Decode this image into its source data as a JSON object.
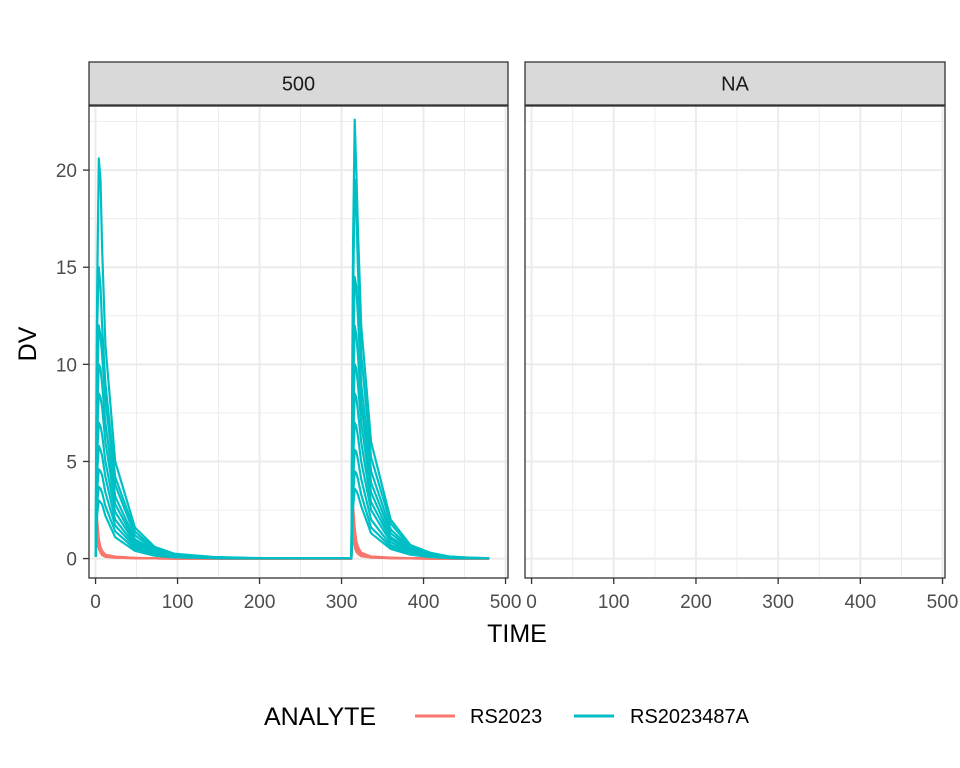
{
  "chart_data": {
    "type": "line",
    "xlabel": "TIME",
    "ylabel": "DV",
    "facets": [
      "500",
      "NA"
    ],
    "xlim": [
      -8,
      503
    ],
    "ylim": [
      -1,
      23.3
    ],
    "x_ticks": [
      0,
      100,
      200,
      300,
      400,
      500
    ],
    "y_ticks": [
      0,
      5,
      10,
      15,
      20
    ],
    "grid": true,
    "legend": {
      "title": "ANALYTE",
      "position": "bottom",
      "entries": [
        "RS2023",
        "RS2023487A"
      ]
    },
    "colors": {
      "RS2023": "#F8766D",
      "RS2023487A": "#00BFC4"
    },
    "sampling_times": [
      0,
      1,
      2,
      4,
      6,
      8,
      12,
      24,
      48,
      72,
      96,
      144,
      192,
      240,
      288,
      312,
      313,
      314,
      316,
      318,
      320,
      324,
      336,
      360,
      384,
      408,
      432,
      456,
      480
    ],
    "series": [
      {
        "analyte": "RS2023",
        "facet": "500",
        "values": [
          0.1,
          2.6,
          2.0,
          1.0,
          0.6,
          0.4,
          0.2,
          0.1,
          0.04,
          0.02,
          0.01,
          0.01,
          0,
          0,
          0,
          0,
          3.6,
          2.8,
          1.6,
          0.9,
          0.6,
          0.3,
          0.1,
          0.05,
          0.02,
          0.01,
          0.01,
          0,
          0
        ]
      },
      {
        "analyte": "RS2023",
        "facet": "500",
        "values": [
          0.1,
          2.2,
          1.7,
          0.9,
          0.5,
          0.35,
          0.18,
          0.08,
          0.03,
          0.02,
          0.01,
          0,
          0,
          0,
          0,
          0,
          3.0,
          2.3,
          1.3,
          0.7,
          0.45,
          0.25,
          0.1,
          0.04,
          0.02,
          0.01,
          0,
          0,
          0
        ]
      },
      {
        "analyte": "RS2023",
        "facet": "500",
        "values": [
          0.1,
          1.9,
          1.5,
          0.8,
          0.45,
          0.3,
          0.15,
          0.07,
          0.03,
          0.01,
          0.01,
          0,
          0,
          0,
          0,
          0,
          2.5,
          1.9,
          1.1,
          0.6,
          0.4,
          0.2,
          0.08,
          0.03,
          0.01,
          0.01,
          0,
          0,
          0
        ]
      },
      {
        "analyte": "RS2023",
        "facet": "500",
        "values": [
          0.1,
          1.6,
          1.2,
          0.7,
          0.4,
          0.25,
          0.12,
          0.06,
          0.02,
          0.01,
          0,
          0,
          0,
          0,
          0,
          0,
          2.1,
          1.6,
          0.9,
          0.5,
          0.35,
          0.18,
          0.07,
          0.03,
          0.01,
          0,
          0,
          0,
          0
        ]
      },
      {
        "analyte": "RS2023",
        "facet": "500",
        "values": [
          0.1,
          1.3,
          1.0,
          0.6,
          0.35,
          0.2,
          0.1,
          0.05,
          0.02,
          0.01,
          0,
          0,
          0,
          0,
          0,
          0,
          1.7,
          1.3,
          0.8,
          0.45,
          0.3,
          0.15,
          0.06,
          0.02,
          0.01,
          0,
          0,
          0,
          0
        ]
      },
      {
        "analyte": "RS2023",
        "facet": "500",
        "values": [
          0.1,
          1.0,
          0.8,
          0.5,
          0.3,
          0.18,
          0.09,
          0.04,
          0.02,
          0.01,
          0,
          0,
          0,
          0,
          0,
          0,
          1.3,
          1.0,
          0.6,
          0.35,
          0.25,
          0.12,
          0.05,
          0.02,
          0.01,
          0,
          0,
          0,
          0
        ]
      },
      {
        "analyte": "RS2023487A",
        "facet": "500",
        "values": [
          0.1,
          8.0,
          14.0,
          20.6,
          19.5,
          16.0,
          11.0,
          5.0,
          1.6,
          0.6,
          0.25,
          0.08,
          0.03,
          0.01,
          0.01,
          0.01,
          9.0,
          16.0,
          22.6,
          20.0,
          17.0,
          12.0,
          6.0,
          2.0,
          0.7,
          0.3,
          0.1,
          0.05,
          0.02
        ]
      },
      {
        "analyte": "RS2023487A",
        "facet": "500",
        "values": [
          0.1,
          6.0,
          12.0,
          15.0,
          14.0,
          12.0,
          9.0,
          4.2,
          1.4,
          0.5,
          0.2,
          0.07,
          0.02,
          0.01,
          0.01,
          0.01,
          7.0,
          13.0,
          19.5,
          18.0,
          15.0,
          10.5,
          5.2,
          1.8,
          0.6,
          0.25,
          0.1,
          0.04,
          0.02
        ]
      },
      {
        "analyte": "RS2023487A",
        "facet": "500",
        "values": [
          0.1,
          5.0,
          9.0,
          12.0,
          11.5,
          10.5,
          8.2,
          3.8,
          1.2,
          0.45,
          0.18,
          0.06,
          0.02,
          0.01,
          0.01,
          0.01,
          6.0,
          10.0,
          14.5,
          14.0,
          12.5,
          9.0,
          4.5,
          1.5,
          0.55,
          0.22,
          0.08,
          0.03,
          0.01
        ]
      },
      {
        "analyte": "RS2023487A",
        "facet": "500",
        "values": [
          0.1,
          4.2,
          7.5,
          10.0,
          9.8,
          9.0,
          7.0,
          3.2,
          1.0,
          0.4,
          0.15,
          0.05,
          0.02,
          0.01,
          0.01,
          0.01,
          5.0,
          8.5,
          12.0,
          11.5,
          10.5,
          8.0,
          3.9,
          1.3,
          0.5,
          0.2,
          0.07,
          0.03,
          0.01
        ]
      },
      {
        "analyte": "RS2023487A",
        "facet": "500",
        "values": [
          0.1,
          3.5,
          6.5,
          8.5,
          8.3,
          7.8,
          6.0,
          2.8,
          0.9,
          0.35,
          0.13,
          0.05,
          0.02,
          0.01,
          0.01,
          0.01,
          4.2,
          7.0,
          10.0,
          9.8,
          9.0,
          7.0,
          3.4,
          1.1,
          0.45,
          0.18,
          0.06,
          0.02,
          0.01
        ]
      },
      {
        "analyte": "RS2023487A",
        "facet": "500",
        "values": [
          0.1,
          3.0,
          5.5,
          7.0,
          6.8,
          6.4,
          5.0,
          2.4,
          0.8,
          0.3,
          0.12,
          0.04,
          0.01,
          0.01,
          0.01,
          0.01,
          3.6,
          6.0,
          8.5,
          8.3,
          7.6,
          6.0,
          2.9,
          1.0,
          0.4,
          0.15,
          0.05,
          0.02,
          0.01
        ]
      },
      {
        "analyte": "RS2023487A",
        "facet": "500",
        "values": [
          0.1,
          2.5,
          4.5,
          5.8,
          5.6,
          5.3,
          4.2,
          2.0,
          0.7,
          0.25,
          0.1,
          0.04,
          0.01,
          0.01,
          0.01,
          0.01,
          3.0,
          5.0,
          7.0,
          6.8,
          6.3,
          5.0,
          2.5,
          0.85,
          0.35,
          0.13,
          0.05,
          0.02,
          0.01
        ]
      },
      {
        "analyte": "RS2023487A",
        "facet": "500",
        "values": [
          0.1,
          2.0,
          3.6,
          4.6,
          4.5,
          4.3,
          3.4,
          1.7,
          0.6,
          0.22,
          0.09,
          0.03,
          0.01,
          0.01,
          0.01,
          0.01,
          2.4,
          4.0,
          5.6,
          5.5,
          5.1,
          4.1,
          2.0,
          0.7,
          0.3,
          0.11,
          0.04,
          0.01,
          0.01
        ]
      },
      {
        "analyte": "RS2023487A",
        "facet": "500",
        "values": [
          0.1,
          1.6,
          2.9,
          3.7,
          3.6,
          3.4,
          2.7,
          1.4,
          0.5,
          0.18,
          0.07,
          0.03,
          0.01,
          0.01,
          0.01,
          0.01,
          2.0,
          3.2,
          4.5,
          4.4,
          4.1,
          3.3,
          1.6,
          0.6,
          0.25,
          0.09,
          0.03,
          0.01,
          0.01
        ]
      },
      {
        "analyte": "RS2023487A",
        "facet": "500",
        "values": [
          0.1,
          1.3,
          2.3,
          3.0,
          2.9,
          2.8,
          2.2,
          1.1,
          0.4,
          0.15,
          0.06,
          0.02,
          0.01,
          0.01,
          0.01,
          0.01,
          1.6,
          2.6,
          3.6,
          3.5,
          3.3,
          2.7,
          1.3,
          0.5,
          0.2,
          0.08,
          0.03,
          0.01,
          0.01
        ]
      }
    ]
  }
}
